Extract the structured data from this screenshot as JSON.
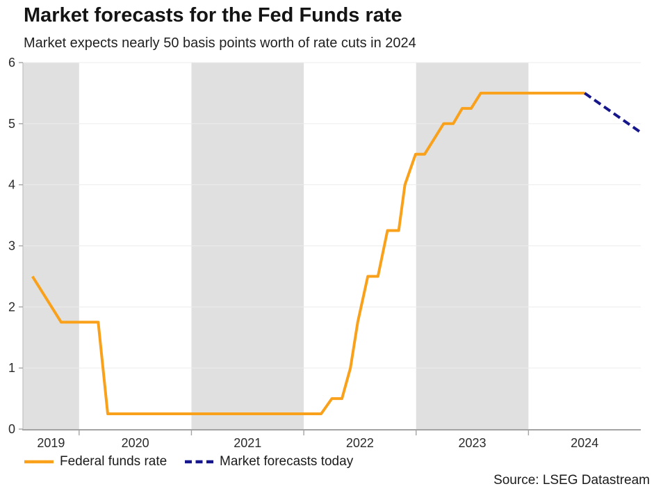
{
  "chart_data": {
    "type": "line",
    "title": "Market forecasts for the Fed Funds rate",
    "subtitle": "Market expects nearly 50 basis points worth of rate cuts in 2024",
    "source": "Source: LSEG Datastream",
    "x_domain": [
      2019.5,
      2025.0
    ],
    "y_domain": [
      0,
      6
    ],
    "y_ticks": [
      0,
      1,
      2,
      3,
      4,
      5,
      6
    ],
    "x_year_ticks": [
      2020,
      2021,
      2022,
      2023,
      2024
    ],
    "x_labels": [
      {
        "text": "2019",
        "t": 2019.75
      },
      {
        "text": "2020",
        "t": 2020.5
      },
      {
        "text": "2021",
        "t": 2021.5
      },
      {
        "text": "2022",
        "t": 2022.5
      },
      {
        "text": "2023",
        "t": 2023.5
      },
      {
        "text": "2024",
        "t": 2024.5
      }
    ],
    "shaded_bands": [
      [
        2019.5,
        2020.0
      ],
      [
        2021.0,
        2022.0
      ],
      [
        2023.0,
        2024.0
      ]
    ],
    "grid": "horizontal",
    "legend_position": "bottom-left",
    "colors": {
      "band": "#E0E0E0",
      "grid": "#ECECEC",
      "axis": "#A3A3A3",
      "y_axis_line": "#C4C4C4",
      "tick_label": "#2A2A2A",
      "orange": "#F9A11B",
      "navy": "#16168C"
    },
    "series": [
      {
        "name": "Federal funds rate",
        "color": "#F9A11B",
        "style": "solid",
        "points": [
          [
            2019.585,
            2.5
          ],
          [
            2019.84,
            1.75
          ],
          [
            2020.17,
            1.75
          ],
          [
            2020.255,
            0.25
          ],
          [
            2022.155,
            0.25
          ],
          [
            2022.25,
            0.5
          ],
          [
            2022.34,
            0.5
          ],
          [
            2022.415,
            1.0
          ],
          [
            2022.48,
            1.75
          ],
          [
            2022.57,
            2.5
          ],
          [
            2022.66,
            2.5
          ],
          [
            2022.745,
            3.25
          ],
          [
            2022.845,
            3.25
          ],
          [
            2022.9,
            4.0
          ],
          [
            2022.995,
            4.5
          ],
          [
            2023.075,
            4.5
          ],
          [
            2023.16,
            4.75
          ],
          [
            2023.245,
            5.0
          ],
          [
            2023.33,
            5.0
          ],
          [
            2023.41,
            5.25
          ],
          [
            2023.49,
            5.25
          ],
          [
            2023.575,
            5.5
          ],
          [
            2024.5,
            5.5
          ]
        ]
      },
      {
        "name": "Market forecasts today",
        "color": "#16168C",
        "style": "dashed",
        "points": [
          [
            2024.5,
            5.5
          ],
          [
            2024.99,
            4.87
          ]
        ]
      }
    ]
  }
}
